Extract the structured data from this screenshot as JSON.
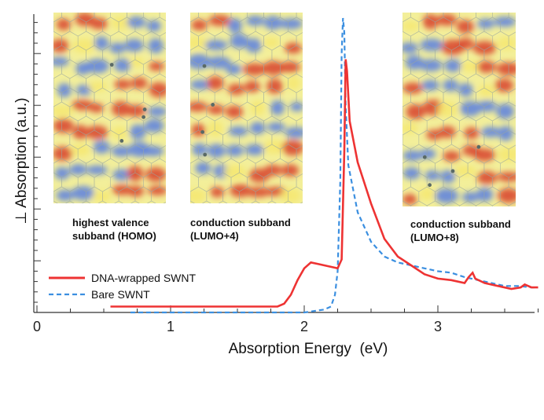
{
  "chart_data": {
    "type": "line",
    "xlabel": "Absorption Energy  (eV)",
    "ylabel": "⊥ Absorption (a.u.)",
    "xlim": [
      0,
      3.75
    ],
    "ylim": [
      0,
      1
    ],
    "x_ticks": [
      "0",
      "1",
      "2",
      "3"
    ],
    "y_tick_labels_shown": false,
    "grid": false,
    "legend_position": "bottom-left",
    "series": [
      {
        "name": "DNA-wrapped SWNT",
        "color": "#ee3333",
        "style": "solid",
        "points": [
          [
            0.55,
            0.02
          ],
          [
            1.0,
            0.02
          ],
          [
            1.5,
            0.02
          ],
          [
            1.8,
            0.02
          ],
          [
            1.85,
            0.03
          ],
          [
            1.9,
            0.06
          ],
          [
            1.95,
            0.11
          ],
          [
            2.0,
            0.15
          ],
          [
            2.05,
            0.17
          ],
          [
            2.1,
            0.165
          ],
          [
            2.15,
            0.16
          ],
          [
            2.2,
            0.155
          ],
          [
            2.25,
            0.15
          ],
          [
            2.28,
            0.18
          ],
          [
            2.3,
            0.55
          ],
          [
            2.31,
            0.86
          ],
          [
            2.32,
            0.82
          ],
          [
            2.34,
            0.65
          ],
          [
            2.37,
            0.58
          ],
          [
            2.4,
            0.51
          ],
          [
            2.45,
            0.44
          ],
          [
            2.5,
            0.37
          ],
          [
            2.55,
            0.31
          ],
          [
            2.6,
            0.25
          ],
          [
            2.7,
            0.19
          ],
          [
            2.8,
            0.16
          ],
          [
            2.9,
            0.13
          ],
          [
            3.0,
            0.115
          ],
          [
            3.1,
            0.11
          ],
          [
            3.2,
            0.1
          ],
          [
            3.23,
            0.12
          ],
          [
            3.26,
            0.135
          ],
          [
            3.28,
            0.115
          ],
          [
            3.35,
            0.1
          ],
          [
            3.45,
            0.09
          ],
          [
            3.55,
            0.08
          ],
          [
            3.62,
            0.085
          ],
          [
            3.65,
            0.095
          ],
          [
            3.7,
            0.085
          ],
          [
            3.75,
            0.085
          ]
        ]
      },
      {
        "name": "Bare SWNT",
        "color": "#3b8fe0",
        "style": "dashed",
        "points": [
          [
            0.7,
            0.0
          ],
          [
            1.0,
            0.0
          ],
          [
            1.5,
            0.0
          ],
          [
            2.0,
            0.0
          ],
          [
            2.15,
            0.01
          ],
          [
            2.2,
            0.02
          ],
          [
            2.23,
            0.06
          ],
          [
            2.25,
            0.14
          ],
          [
            2.27,
            0.45
          ],
          [
            2.28,
            0.88
          ],
          [
            2.29,
            1.0
          ],
          [
            2.3,
            0.95
          ],
          [
            2.31,
            0.7
          ],
          [
            2.33,
            0.5
          ],
          [
            2.4,
            0.34
          ],
          [
            2.5,
            0.24
          ],
          [
            2.6,
            0.19
          ],
          [
            2.7,
            0.17
          ],
          [
            2.8,
            0.16
          ],
          [
            2.9,
            0.15
          ],
          [
            3.0,
            0.14
          ],
          [
            3.1,
            0.135
          ],
          [
            3.2,
            0.12
          ],
          [
            3.3,
            0.11
          ],
          [
            3.4,
            0.1
          ],
          [
            3.5,
            0.09
          ],
          [
            3.6,
            0.09
          ],
          [
            3.7,
            0.085
          ],
          [
            3.75,
            0.085
          ]
        ]
      }
    ],
    "insets": [
      {
        "caption_lines": [
          "highest valence",
          "subband (HOMO)"
        ]
      },
      {
        "caption_lines": [
          "conduction subband",
          "(LUMO+4)"
        ]
      },
      {
        "caption_lines": [
          "conduction subband",
          "(LUMO+8)"
        ]
      }
    ]
  }
}
